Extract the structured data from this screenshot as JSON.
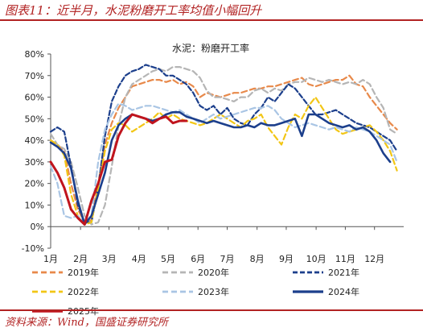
{
  "header": {
    "title": "图表11：近半月，水泥粉磨开工率均值小幅回升"
  },
  "footer": {
    "source": "资料来源：Wind，国盛证券研究所"
  },
  "chart_data": {
    "type": "line",
    "title": "水泥：粉磨开工率",
    "xlabel": "",
    "ylabel": "",
    "ylim": [
      -10,
      80
    ],
    "yticks": [
      "-10%",
      "0%",
      "10%",
      "20%",
      "30%",
      "40%",
      "50%",
      "60%",
      "70%",
      "80%"
    ],
    "x_month_labels": [
      "1月",
      "2月",
      "3月",
      "4月",
      "5月",
      "6月",
      "7月",
      "8月",
      "9月",
      "10月",
      "11月",
      "12月"
    ],
    "x_unit": "week of year (1-53)",
    "grid": false,
    "legend": "bottom",
    "series": [
      {
        "name": "2019年",
        "color": "#e8894a",
        "dash": "7,4",
        "width": 2.2,
        "x": [
          1,
          2,
          3,
          4,
          5,
          6,
          7,
          8,
          9,
          10,
          11,
          12,
          13,
          14,
          15,
          16,
          17,
          18,
          19,
          20,
          21,
          22,
          23,
          24,
          25,
          26,
          27,
          28,
          29,
          30,
          31,
          32,
          33,
          34,
          35,
          36,
          37,
          38,
          39,
          40,
          41,
          42,
          43,
          44,
          45,
          46,
          47,
          48,
          49,
          50,
          51,
          52
        ],
        "y": [
          40,
          38,
          35,
          20,
          8,
          2,
          3,
          20,
          38,
          48,
          55,
          60,
          65,
          66,
          67,
          68,
          68,
          67,
          68,
          66,
          67,
          65,
          60,
          62,
          61,
          60,
          61,
          62,
          62,
          63,
          64,
          64,
          65,
          65,
          66,
          67,
          68,
          69,
          66,
          65,
          66,
          67,
          68,
          68,
          70,
          66,
          65,
          60,
          56,
          52,
          48,
          45
        ]
      },
      {
        "name": "2020年",
        "color": "#b5b5b5",
        "dash": "7,4",
        "width": 2.2,
        "x": [
          1,
          2,
          3,
          4,
          5,
          6,
          7,
          8,
          9,
          10,
          11,
          12,
          13,
          14,
          15,
          16,
          17,
          18,
          19,
          20,
          21,
          22,
          23,
          24,
          25,
          26,
          27,
          28,
          29,
          30,
          31,
          32,
          33,
          34,
          35,
          36,
          37,
          38,
          39,
          40,
          41,
          42,
          43,
          44,
          45,
          46,
          47,
          48,
          49,
          50,
          51,
          52
        ],
        "y": [
          43,
          38,
          36,
          30,
          18,
          5,
          1,
          2,
          10,
          28,
          47,
          60,
          66,
          68,
          70,
          72,
          73,
          72,
          74,
          74,
          73,
          72,
          69,
          63,
          60,
          60,
          59,
          58,
          60,
          60,
          63,
          64,
          62,
          64,
          63,
          66,
          67,
          67,
          69,
          68,
          67,
          68,
          67,
          66,
          67,
          66,
          68,
          66,
          60,
          55,
          45,
          43
        ]
      },
      {
        "name": "2021年",
        "color": "#1c3f8c",
        "dash": "6,3",
        "width": 2.2,
        "x": [
          1,
          2,
          3,
          4,
          5,
          6,
          7,
          8,
          9,
          10,
          11,
          12,
          13,
          14,
          15,
          16,
          17,
          18,
          19,
          20,
          21,
          22,
          23,
          24,
          25,
          26,
          27,
          28,
          29,
          30,
          31,
          32,
          33,
          34,
          35,
          36,
          37,
          38,
          39,
          40,
          41,
          42,
          43,
          44,
          45,
          46,
          47,
          48,
          49,
          50,
          51,
          52
        ],
        "y": [
          44,
          46,
          44,
          28,
          10,
          2,
          2,
          18,
          42,
          58,
          65,
          70,
          72,
          73,
          75,
          74,
          73,
          70,
          70,
          68,
          66,
          62,
          56,
          54,
          56,
          52,
          55,
          50,
          48,
          47,
          52,
          55,
          60,
          58,
          62,
          66,
          64,
          60,
          56,
          52,
          52,
          53,
          54,
          52,
          50,
          48,
          47,
          46,
          44,
          42,
          40,
          35
        ]
      },
      {
        "name": "2022年",
        "color": "#f2c616",
        "dash": "7,4",
        "width": 2.2,
        "x": [
          1,
          2,
          3,
          4,
          5,
          6,
          7,
          8,
          9,
          10,
          11,
          12,
          13,
          14,
          15,
          16,
          17,
          18,
          19,
          20,
          21,
          22,
          23,
          24,
          25,
          26,
          27,
          28,
          29,
          30,
          31,
          32,
          33,
          34,
          35,
          36,
          37,
          38,
          39,
          40,
          41,
          42,
          43,
          44,
          45,
          46,
          47,
          48,
          49,
          50,
          51,
          52
        ],
        "y": [
          40,
          38,
          33,
          15,
          5,
          1,
          2,
          18,
          35,
          45,
          48,
          47,
          44,
          46,
          48,
          50,
          53,
          50,
          52,
          50,
          49,
          48,
          47,
          48,
          50,
          52,
          50,
          48,
          46,
          49,
          50,
          52,
          46,
          42,
          38,
          46,
          52,
          50,
          56,
          60,
          55,
          50,
          45,
          43,
          44,
          45,
          46,
          47,
          44,
          40,
          35,
          26
        ]
      },
      {
        "name": "2023年",
        "color": "#a9c5e4",
        "dash": "7,4",
        "width": 2.2,
        "x": [
          1,
          2,
          3,
          4,
          5,
          6,
          7,
          8,
          9,
          10,
          11,
          12,
          13,
          14,
          15,
          16,
          17,
          18,
          19,
          20,
          21,
          22,
          23,
          24,
          25,
          26,
          27,
          28,
          29,
          30,
          31,
          32,
          33,
          34,
          35,
          36,
          37,
          38,
          39,
          40,
          41,
          42,
          43,
          44,
          45,
          46,
          47,
          48,
          49,
          50,
          51,
          52
        ],
        "y": [
          28,
          20,
          5,
          4,
          5,
          2,
          5,
          30,
          45,
          52,
          57,
          56,
          54,
          55,
          56,
          56,
          55,
          54,
          53,
          54,
          52,
          50,
          48,
          50,
          52,
          50,
          51,
          52,
          53,
          54,
          55,
          55,
          56,
          54,
          50,
          48,
          46,
          47,
          48,
          47,
          46,
          45,
          46,
          45,
          44,
          46,
          45,
          44,
          42,
          40,
          38,
          30
        ]
      },
      {
        "name": "2024年",
        "color": "#1c3f8c",
        "dash": "",
        "width": 2.6,
        "x": [
          1,
          2,
          3,
          4,
          5,
          6,
          7,
          8,
          9,
          10,
          11,
          12,
          13,
          14,
          15,
          16,
          17,
          18,
          19,
          20,
          21,
          22,
          23,
          24,
          25,
          26,
          27,
          28,
          29,
          30,
          31,
          32,
          33,
          34,
          35,
          36,
          37,
          38,
          39,
          40,
          41,
          42,
          43,
          44,
          45,
          46,
          47,
          48,
          49,
          50,
          51
        ],
        "y": [
          39,
          37,
          34,
          27,
          12,
          1,
          5,
          15,
          25,
          40,
          47,
          50,
          52,
          51,
          50,
          49,
          50,
          52,
          53,
          53,
          51,
          50,
          49,
          48,
          49,
          48,
          47,
          46,
          46,
          47,
          46,
          48,
          47,
          47,
          48,
          49,
          50,
          42,
          52,
          52,
          50,
          48,
          47,
          46,
          47,
          45,
          46,
          44,
          40,
          34,
          30
        ]
      },
      {
        "name": "2025年",
        "color": "#c0141d",
        "dash": "",
        "width": 3,
        "x": [
          1,
          2,
          3,
          4,
          5,
          6,
          7,
          8,
          9,
          10,
          11,
          12,
          13,
          14,
          15,
          16,
          17,
          18,
          19,
          20,
          21
        ],
        "y": [
          30,
          25,
          18,
          8,
          4,
          1,
          12,
          20,
          30,
          31,
          42,
          48,
          52,
          51,
          50,
          48,
          50,
          51,
          48,
          49,
          49
        ]
      }
    ]
  }
}
